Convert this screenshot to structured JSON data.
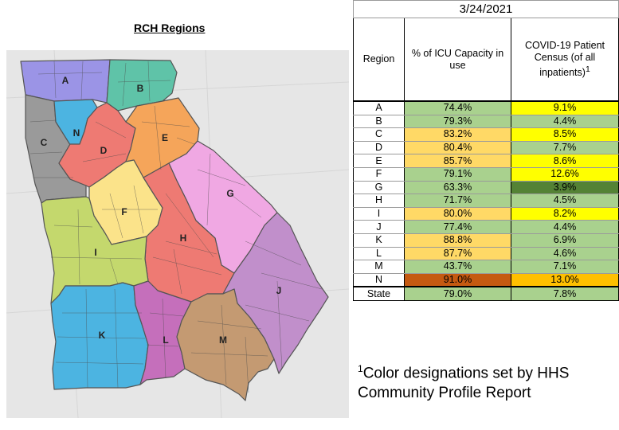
{
  "map": {
    "title": "RCH Regions",
    "regions": [
      {
        "id": "A",
        "color": "#9b94e6"
      },
      {
        "id": "B",
        "color": "#5fc3a8"
      },
      {
        "id": "C",
        "color": "#9a9a9a"
      },
      {
        "id": "D",
        "color": "#ee7a73"
      },
      {
        "id": "E",
        "color": "#f5a55a"
      },
      {
        "id": "F",
        "color": "#fbe38a"
      },
      {
        "id": "G",
        "color": "#f0a8e3"
      },
      {
        "id": "H",
        "color": "#ee7a73"
      },
      {
        "id": "I",
        "color": "#c4d86d"
      },
      {
        "id": "J",
        "color": "#c18fcb"
      },
      {
        "id": "K",
        "color": "#4cb4e1"
      },
      {
        "id": "L",
        "color": "#c56fbb"
      },
      {
        "id": "M",
        "color": "#c49a72"
      },
      {
        "id": "N",
        "color": "#4cb4e1"
      }
    ]
  },
  "table": {
    "date": "3/24/2021",
    "headers": {
      "region": "Region",
      "icu": "% of ICU Capacity in use",
      "census": "COVID-19 Patient Census (of all inpatients)",
      "census_sup": "1"
    },
    "rows": [
      {
        "region": "A",
        "icu": "74.4%",
        "icu_color": "#a9d18e",
        "census": "9.1%",
        "census_color": "#ffff00"
      },
      {
        "region": "B",
        "icu": "79.3%",
        "icu_color": "#a9d18e",
        "census": "4.4%",
        "census_color": "#a9d18e"
      },
      {
        "region": "C",
        "icu": "83.2%",
        "icu_color": "#ffd966",
        "census": "8.5%",
        "census_color": "#ffff00"
      },
      {
        "region": "D",
        "icu": "80.4%",
        "icu_color": "#ffd966",
        "census": "7.7%",
        "census_color": "#a9d18e"
      },
      {
        "region": "E",
        "icu": "85.7%",
        "icu_color": "#ffd966",
        "census": "8.6%",
        "census_color": "#ffff00"
      },
      {
        "region": "F",
        "icu": "79.1%",
        "icu_color": "#a9d18e",
        "census": "12.6%",
        "census_color": "#ffff00"
      },
      {
        "region": "G",
        "icu": "63.3%",
        "icu_color": "#a9d18e",
        "census": "3.9%",
        "census_color": "#548235"
      },
      {
        "region": "H",
        "icu": "71.7%",
        "icu_color": "#a9d18e",
        "census": "4.5%",
        "census_color": "#a9d18e"
      },
      {
        "region": "I",
        "icu": "80.0%",
        "icu_color": "#ffd966",
        "census": "8.2%",
        "census_color": "#ffff00"
      },
      {
        "region": "J",
        "icu": "77.4%",
        "icu_color": "#a9d18e",
        "census": "4.4%",
        "census_color": "#a9d18e"
      },
      {
        "region": "K",
        "icu": "88.8%",
        "icu_color": "#ffd966",
        "census": "6.9%",
        "census_color": "#a9d18e"
      },
      {
        "region": "L",
        "icu": "87.7%",
        "icu_color": "#ffd966",
        "census": "4.6%",
        "census_color": "#a9d18e"
      },
      {
        "region": "M",
        "icu": "43.7%",
        "icu_color": "#a9d18e",
        "census": "7.1%",
        "census_color": "#a9d18e"
      },
      {
        "region": "N",
        "icu": "91.0%",
        "icu_color": "#c55a11",
        "census": "13.0%",
        "census_color": "#ffc000"
      }
    ],
    "state": {
      "region": "State",
      "icu": "79.0%",
      "icu_color": "#a9d18e",
      "census": "7.8%",
      "census_color": "#a9d18e"
    }
  },
  "footnote": {
    "sup": "1",
    "text": "Color designations set by HHS Community Profile Report"
  }
}
